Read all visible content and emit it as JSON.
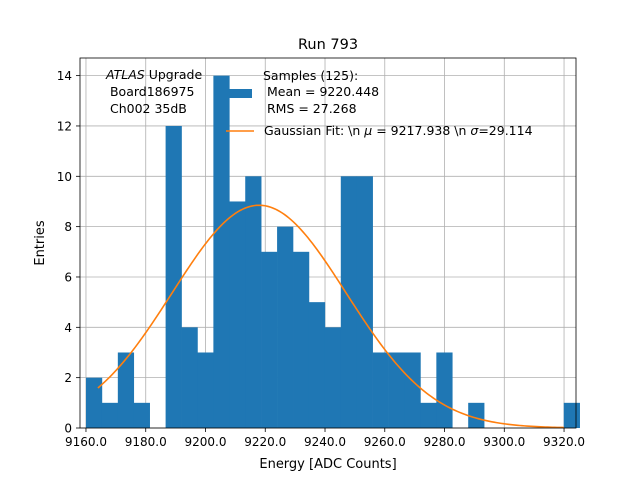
{
  "chart_data": {
    "type": "bar",
    "title": "Run 793",
    "xlabel": "Energy [ADC Counts]",
    "ylabel": "Entries",
    "xlim": [
      9158.0,
      9324.0
    ],
    "ylim": [
      0,
      14.7
    ],
    "grid": true,
    "x_ticks": [
      9160,
      9180,
      9200,
      9220,
      9240,
      9260,
      9280,
      9300,
      9320
    ],
    "x_tick_labels": [
      "9160.0",
      "9180.0",
      "9200.0",
      "9220.0",
      "9240.0",
      "9260.0",
      "9280.0",
      "9300.0",
      "9320.0"
    ],
    "y_ticks": [
      0,
      2,
      4,
      6,
      8,
      10,
      12,
      14
    ],
    "y_tick_labels": [
      "0",
      "2",
      "4",
      "6",
      "8",
      "10",
      "12",
      "14"
    ],
    "histogram": {
      "name": "Samples (125)",
      "color": "#1f77b4",
      "bin_start": 9160.0,
      "bin_width": 5.33,
      "counts": [
        2,
        1,
        3,
        1,
        0,
        12,
        4,
        3,
        14,
        9,
        10,
        7,
        8,
        7,
        5,
        4,
        10,
        10,
        3,
        3,
        3,
        1,
        3,
        0,
        1,
        0,
        0,
        0,
        0,
        0,
        1
      ]
    },
    "gaussian_fit": {
      "name": "Gaussian Fit",
      "color": "#ff7f0e",
      "mu": 9217.938,
      "sigma": 29.114,
      "amplitude": 8.85,
      "x_range": [
        9164.0,
        9320.0
      ]
    },
    "annotation": {
      "italic": "ATLAS",
      "line1_rest": " Upgrade",
      "line2": " Board186975",
      "line3": " Ch002 35dB"
    },
    "legend": {
      "position": "top-right",
      "hist_line1": "Samples (125):",
      "hist_line2": " Mean = 9220.448",
      "hist_line3": " RMS = 27.268",
      "fit_part1": "Gaussian Fit: \\n ",
      "fit_mu_symbol": "μ",
      "fit_part2": " = 9217.938 \\n ",
      "fit_sigma_symbol": "σ",
      "fit_part3": "=29.114"
    }
  }
}
